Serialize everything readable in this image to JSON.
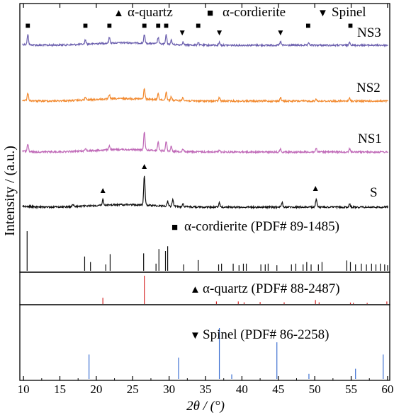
{
  "chart_data": {
    "type": "line",
    "xlabel": "2θ / (°)",
    "ylabel": "Intensity / (a.u.)",
    "xlim": [
      9.5,
      60.3
    ],
    "x_ticks": [
      10,
      15,
      20,
      25,
      30,
      35,
      40,
      45,
      50,
      55,
      60
    ],
    "legend": [
      {
        "symbol": "▲",
        "name": "α-quartz"
      },
      {
        "symbol": "■",
        "name": "α-cordierite"
      },
      {
        "symbol": "▼",
        "name": "Spinel"
      }
    ],
    "series": [
      {
        "name": "NS3",
        "color": "#6b5fae",
        "peaks": [
          [
            10.6,
            14
          ],
          [
            18.5,
            6
          ],
          [
            21.8,
            8
          ],
          [
            26.6,
            12
          ],
          [
            28.5,
            9
          ],
          [
            29.6,
            13
          ],
          [
            30.3,
            6
          ],
          [
            31.9,
            4
          ],
          [
            34.0,
            4
          ],
          [
            36.9,
            4
          ],
          [
            45.3,
            5
          ],
          [
            49.2,
            3
          ],
          [
            54.8,
            5
          ]
        ],
        "markers": [
          {
            "x": 10.6,
            "symbol": "■"
          },
          {
            "x": 18.5,
            "symbol": "■"
          },
          {
            "x": 21.8,
            "symbol": "■"
          },
          {
            "x": 26.6,
            "symbol": "■"
          },
          {
            "x": 28.5,
            "symbol": "■"
          },
          {
            "x": 29.6,
            "symbol": "■"
          },
          {
            "x": 31.8,
            "symbol": "▼"
          },
          {
            "x": 34.0,
            "symbol": "■"
          },
          {
            "x": 36.9,
            "symbol": "▼"
          },
          {
            "x": 45.3,
            "symbol": "▼"
          },
          {
            "x": 49.1,
            "symbol": "■"
          },
          {
            "x": 54.9,
            "symbol": "■"
          }
        ]
      },
      {
        "name": "NS2",
        "color": "#f28a30",
        "peaks": [
          [
            10.6,
            10
          ],
          [
            18.5,
            4
          ],
          [
            21.8,
            6
          ],
          [
            26.6,
            15
          ],
          [
            28.5,
            9
          ],
          [
            29.6,
            12
          ],
          [
            30.3,
            5
          ],
          [
            31.9,
            5
          ],
          [
            36.9,
            5
          ],
          [
            45.3,
            5
          ],
          [
            50.2,
            3
          ],
          [
            54.8,
            4
          ]
        ],
        "markers": []
      },
      {
        "name": "NS1",
        "color": "#c06ab8",
        "peaks": [
          [
            10.6,
            10
          ],
          [
            18.5,
            4
          ],
          [
            21.8,
            6
          ],
          [
            26.6,
            26
          ],
          [
            28.5,
            12
          ],
          [
            29.6,
            14
          ],
          [
            30.3,
            7
          ],
          [
            31.9,
            4
          ],
          [
            36.9,
            3
          ],
          [
            45.3,
            4
          ],
          [
            50.2,
            5
          ],
          [
            54.8,
            5
          ]
        ],
        "markers": []
      },
      {
        "name": "S",
        "color": "#111111",
        "peaks": [
          [
            16.8,
            3
          ],
          [
            20.9,
            8
          ],
          [
            26.6,
            42
          ],
          [
            29.8,
            7
          ],
          [
            30.5,
            10
          ],
          [
            31.9,
            5
          ],
          [
            36.9,
            6
          ],
          [
            45.5,
            7
          ],
          [
            50.2,
            11
          ],
          [
            54.8,
            4
          ]
        ],
        "markers": [
          {
            "x": 20.9,
            "symbol": "▲"
          },
          {
            "x": 26.6,
            "symbol": "▲"
          },
          {
            "x": 50.1,
            "symbol": "▲"
          }
        ]
      }
    ],
    "references": [
      {
        "name": "α-cordierite (PDF# 89-1485)",
        "symbol": "■",
        "color": "#111111",
        "lines": [
          [
            10.5,
            1.0
          ],
          [
            18.4,
            0.36
          ],
          [
            19.2,
            0.22
          ],
          [
            21.3,
            0.16
          ],
          [
            21.9,
            0.42
          ],
          [
            26.5,
            0.44
          ],
          [
            28.2,
            0.18
          ],
          [
            28.6,
            0.55
          ],
          [
            29.5,
            0.5
          ],
          [
            29.8,
            0.62
          ],
          [
            32.0,
            0.16
          ],
          [
            34.0,
            0.27
          ],
          [
            36.8,
            0.16
          ],
          [
            37.2,
            0.18
          ],
          [
            38.8,
            0.18
          ],
          [
            39.6,
            0.14
          ],
          [
            40.2,
            0.18
          ],
          [
            40.6,
            0.18
          ],
          [
            42.6,
            0.16
          ],
          [
            43.2,
            0.16
          ],
          [
            43.6,
            0.18
          ],
          [
            44.8,
            0.14
          ],
          [
            46.8,
            0.16
          ],
          [
            47.4,
            0.18
          ],
          [
            48.4,
            0.16
          ],
          [
            48.9,
            0.22
          ],
          [
            49.5,
            0.16
          ],
          [
            50.5,
            0.16
          ],
          [
            51.0,
            0.22
          ],
          [
            54.4,
            0.26
          ],
          [
            54.9,
            0.22
          ],
          [
            55.6,
            0.16
          ],
          [
            56.4,
            0.18
          ],
          [
            57.1,
            0.16
          ],
          [
            57.8,
            0.18
          ],
          [
            58.4,
            0.16
          ],
          [
            59.0,
            0.18
          ],
          [
            59.6,
            0.16
          ],
          [
            60.0,
            0.14
          ]
        ]
      },
      {
        "name": "α-quartz (PDF# 88-2487)",
        "symbol": "▲",
        "color": "#d62828",
        "lines": [
          [
            20.9,
            0.22
          ],
          [
            26.6,
            1.0
          ],
          [
            36.5,
            0.09
          ],
          [
            39.5,
            0.09
          ],
          [
            40.3,
            0.06
          ],
          [
            42.5,
            0.07
          ],
          [
            45.8,
            0.06
          ],
          [
            50.1,
            0.14
          ],
          [
            50.6,
            0.06
          ],
          [
            54.9,
            0.05
          ],
          [
            55.3,
            0.04
          ],
          [
            57.2,
            0.04
          ],
          [
            59.9,
            0.09
          ]
        ]
      },
      {
        "name": "Spinel (PDF# 86-2258)",
        "symbol": "▼",
        "color": "#3d6fd1",
        "lines": [
          [
            19.0,
            0.48
          ],
          [
            31.3,
            0.42
          ],
          [
            36.9,
            1.0
          ],
          [
            38.6,
            0.09
          ],
          [
            44.8,
            0.72
          ],
          [
            49.2,
            0.1
          ],
          [
            55.6,
            0.2
          ],
          [
            59.4,
            0.48
          ]
        ]
      }
    ]
  }
}
